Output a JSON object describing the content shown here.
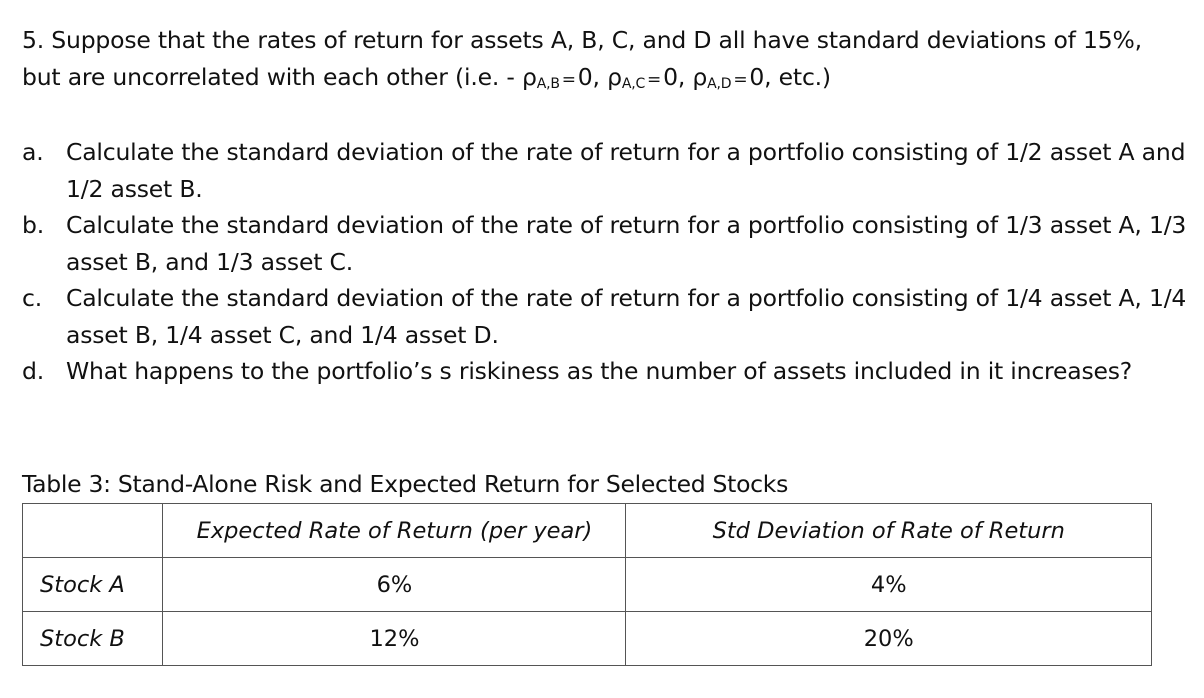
{
  "question": {
    "line1": "5. Suppose that the rates of return for assets A, B, C, and D all have standard deviations of 15%,",
    "line2_prefix": "but are uncorrelated with each other (i.e. - ",
    "correlations": [
      {
        "symbol": "ρ",
        "subscript": "A,B",
        "equals": "=",
        "value": "0",
        "sep": ", "
      },
      {
        "symbol": "ρ",
        "subscript": "A,C",
        "equals": "=",
        "value": "0",
        "sep": ", "
      },
      {
        "symbol": "ρ",
        "subscript": "A,D",
        "equals": "=",
        "value": "0",
        "sep": ", "
      }
    ],
    "line2_suffix": "etc.)"
  },
  "parts": [
    {
      "letter": "a.",
      "text": "Calculate the standard deviation of the rate of return for a portfolio consisting of 1/2 asset A and 1/2 asset B."
    },
    {
      "letter": "b.",
      "text": "Calculate the standard deviation of the rate of return for a portfolio consisting of 1/3 asset A, 1/3 asset B, and 1/3 asset C."
    },
    {
      "letter": "c.",
      "text": "Calculate the standard deviation of the rate of return for a portfolio consisting of 1/4 asset A, 1/4 asset B, 1/4 asset C, and 1/4 asset D."
    },
    {
      "letter": "d.",
      "text": "What happens to the portfolio’s s riskiness as the number of assets included in it increases?"
    }
  ],
  "table": {
    "caption": "Table 3: Stand-Alone Risk and Expected Return for Selected Stocks",
    "headers": [
      "",
      "Expected Rate of Return (per year)",
      "Std Deviation of Rate of Return"
    ],
    "rows": [
      {
        "label": "Stock A",
        "expected": "6%",
        "std": "4%"
      },
      {
        "label": "Stock B",
        "expected": "12%",
        "std": "20%"
      }
    ]
  }
}
